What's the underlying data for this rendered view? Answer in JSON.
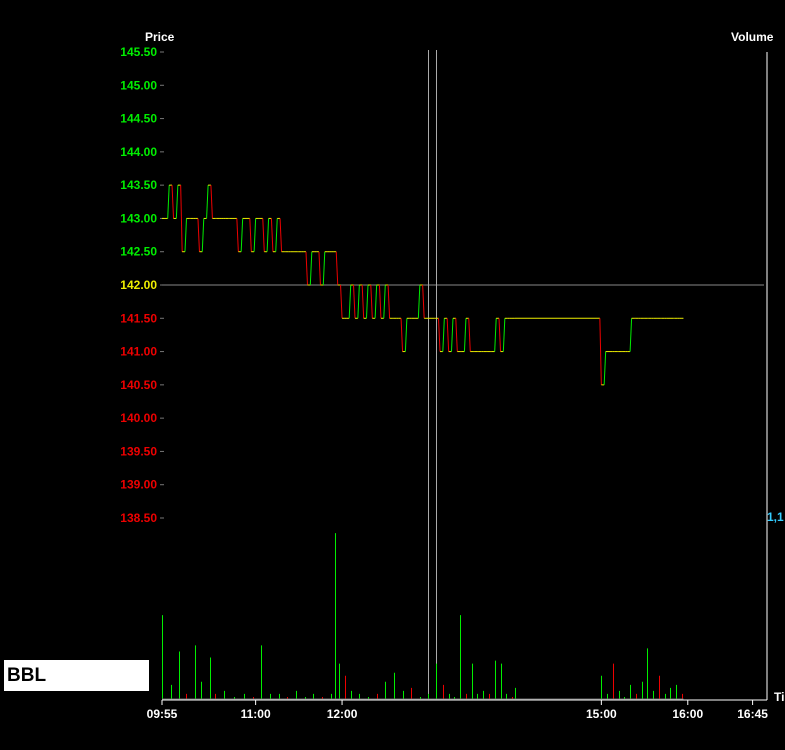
{
  "symbol": "BBL",
  "colors": {
    "background": "#000000",
    "price_up": "#00ee00",
    "price_down": "#ee0000",
    "price_ref": "#eeee00",
    "axis_line": "#ffffff",
    "volume_axis_text": "#33ccff",
    "ref_line": "#888888",
    "cursor_line": "#aaaaaa"
  },
  "chart_data": {
    "type": "line",
    "price_axis_title": "Price",
    "volume_axis_title": "Volume",
    "time_axis_title": "Ti",
    "ylim": [
      138.5,
      145.5
    ],
    "ref_price": 142.0,
    "price_ticks": [
      "145.50",
      "145.00",
      "144.50",
      "144.00",
      "143.50",
      "143.00",
      "142.50",
      "142.00",
      "141.50",
      "141.00",
      "140.50",
      "140.00",
      "139.50",
      "139.00",
      "138.50"
    ],
    "volume_tick_label": "1,1",
    "xlim": [
      "09:55",
      "16:55"
    ],
    "time_ticks": [
      "09:55",
      "11:00",
      "12:00",
      "15:00",
      "16:00",
      "16:45"
    ],
    "cursor_times": [
      "13:00",
      "13:05"
    ],
    "price_series": {
      "name": "",
      "x": [
        "09:55",
        "10:00",
        "10:03",
        "10:06",
        "10:09",
        "10:12",
        "10:15",
        "10:18",
        "10:21",
        "10:24",
        "10:27",
        "10:30",
        "10:33",
        "10:36",
        "10:39",
        "10:42",
        "10:45",
        "10:48",
        "10:51",
        "10:54",
        "10:57",
        "11:00",
        "11:03",
        "11:06",
        "11:09",
        "11:12",
        "11:15",
        "11:18",
        "11:21",
        "11:24",
        "11:27",
        "11:30",
        "11:33",
        "11:36",
        "11:39",
        "11:42",
        "11:45",
        "11:48",
        "11:51",
        "11:54",
        "11:57",
        "12:00",
        "12:03",
        "12:06",
        "12:09",
        "12:12",
        "12:15",
        "12:18",
        "12:21",
        "12:24",
        "12:27",
        "12:30",
        "12:33",
        "12:36",
        "12:39",
        "12:42",
        "12:45",
        "12:48",
        "12:51",
        "12:54",
        "12:57",
        "13:00",
        "13:05",
        "13:08",
        "13:11",
        "13:14",
        "13:17",
        "13:20",
        "13:23",
        "13:26",
        "13:29",
        "13:32",
        "13:35",
        "13:38",
        "13:41",
        "13:44",
        "13:47",
        "13:50",
        "13:53",
        "13:56",
        "13:59",
        "14:00",
        "15:00",
        "15:03",
        "15:06",
        "15:09",
        "15:12",
        "15:15",
        "15:18",
        "15:21",
        "15:24",
        "15:27",
        "15:30",
        "15:33",
        "15:36",
        "15:39",
        "15:42",
        "15:45",
        "15:48",
        "15:51",
        "15:54",
        "15:57"
      ],
      "y": [
        143.0,
        143.5,
        143.0,
        143.5,
        142.5,
        143.0,
        143.0,
        143.0,
        142.5,
        143.0,
        143.5,
        143.0,
        143.0,
        143.0,
        143.0,
        143.0,
        143.0,
        142.5,
        143.0,
        143.0,
        142.5,
        143.0,
        143.0,
        142.5,
        143.0,
        142.5,
        143.0,
        142.5,
        142.5,
        142.5,
        142.5,
        142.5,
        142.5,
        142.0,
        142.5,
        142.5,
        142.0,
        142.5,
        142.5,
        142.5,
        142.0,
        141.5,
        141.5,
        142.0,
        141.5,
        142.0,
        141.5,
        142.0,
        141.5,
        142.0,
        141.5,
        142.0,
        141.5,
        141.5,
        141.5,
        141.0,
        141.5,
        141.5,
        141.5,
        142.0,
        141.5,
        141.5,
        141.5,
        141.0,
        141.5,
        141.0,
        141.5,
        141.0,
        141.0,
        141.5,
        141.0,
        141.0,
        141.0,
        141.0,
        141.0,
        141.0,
        141.5,
        141.0,
        141.5,
        141.5,
        141.5,
        141.5,
        140.5,
        141.0,
        141.0,
        141.0,
        141.0,
        141.0,
        141.0,
        141.5,
        141.5,
        141.5,
        141.5,
        141.5,
        141.5,
        141.5,
        141.5,
        141.5,
        141.5,
        141.5,
        141.5,
        141.5
      ]
    },
    "volume_series": {
      "name": "",
      "x": [
        "09:55",
        "10:01",
        "10:07",
        "10:12",
        "10:18",
        "10:22",
        "10:28",
        "10:32",
        "10:38",
        "10:45",
        "10:52",
        "10:58",
        "11:04",
        "11:10",
        "11:16",
        "11:22",
        "11:28",
        "11:34",
        "11:40",
        "11:46",
        "11:52",
        "11:55",
        "11:58",
        "12:02",
        "12:06",
        "12:12",
        "12:18",
        "12:24",
        "12:30",
        "12:36",
        "12:42",
        "12:48",
        "12:54",
        "13:00",
        "13:05",
        "13:10",
        "13:14",
        "13:18",
        "13:22",
        "13:26",
        "13:30",
        "13:34",
        "13:38",
        "13:42",
        "13:46",
        "13:50",
        "13:54",
        "13:58",
        "14:00",
        "15:00",
        "15:04",
        "15:08",
        "15:12",
        "15:16",
        "15:20",
        "15:24",
        "15:28",
        "15:32",
        "15:36",
        "15:40",
        "15:44",
        "15:48",
        "15:52",
        "15:56"
      ],
      "values": [
        28,
        5,
        16,
        2,
        18,
        6,
        14,
        2,
        3,
        1,
        2,
        1,
        18,
        2,
        2,
        1,
        3,
        1,
        2,
        1,
        2,
        55,
        12,
        8,
        3,
        2,
        1,
        2,
        6,
        9,
        3,
        4,
        1,
        2,
        12,
        5,
        2,
        1,
        28,
        2,
        12,
        2,
        3,
        2,
        13,
        12,
        2,
        1,
        4,
        8,
        2,
        12,
        3,
        1,
        5,
        2,
        6,
        17,
        3,
        8,
        2,
        4,
        5,
        2
      ]
    },
    "volume_ylim": [
      0,
      60
    ],
    "grid": false,
    "legend": "none"
  }
}
